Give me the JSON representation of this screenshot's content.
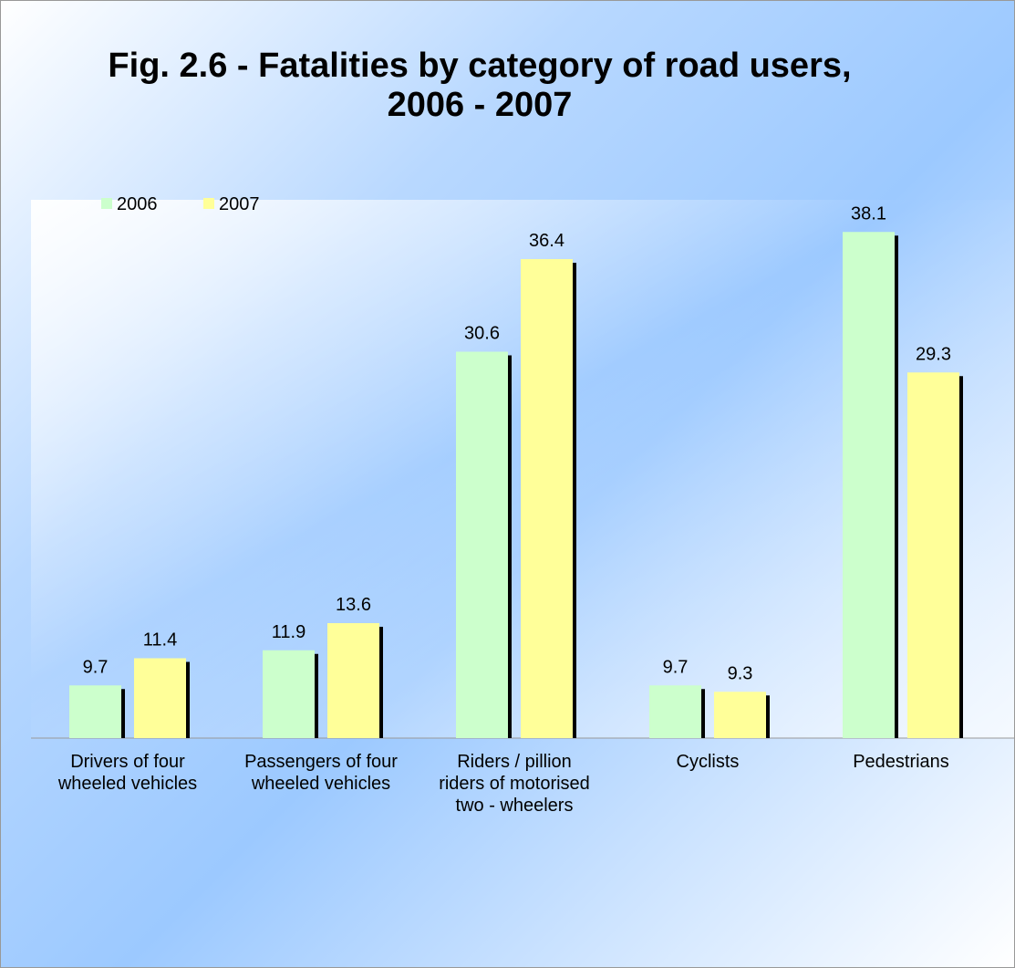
{
  "chart_data": {
    "type": "bar",
    "title": "Fig. 2.6 - Fatalities by category of road users, 2006 - 2007",
    "categories": [
      "Drivers of four wheeled vehicles",
      "Passengers of four wheeled vehicles",
      "Riders / pillion riders of motorised two - wheelers",
      "Cyclists",
      "Pedestrians"
    ],
    "series": [
      {
        "name": "2006",
        "color": "#ccffcc",
        "values": [
          9.7,
          11.9,
          30.6,
          9.7,
          38.1
        ]
      },
      {
        "name": "2007",
        "color": "#ffff99",
        "values": [
          11.4,
          13.6,
          36.4,
          9.3,
          29.3
        ]
      }
    ],
    "ylim": [
      6.4,
      40
    ],
    "legend": "top-left"
  }
}
